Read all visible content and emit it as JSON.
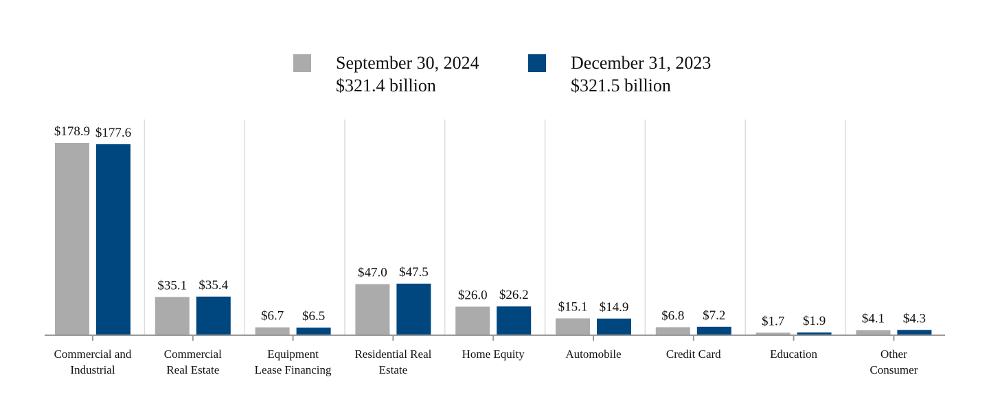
{
  "chart_data": {
    "type": "bar",
    "categories": [
      [
        "Commercial and",
        "Industrial"
      ],
      [
        "Commercial",
        "Real Estate"
      ],
      [
        "Equipment",
        "Lease Financing"
      ],
      [
        "Residential Real",
        "Estate"
      ],
      [
        "Home Equity"
      ],
      [
        "Automobile"
      ],
      [
        "Credit Card"
      ],
      [
        "Education"
      ],
      [
        "Other",
        "Consumer"
      ]
    ],
    "series": [
      {
        "name": "September 30, 2024",
        "total_label": "$321.4 billion",
        "color": "#ababab",
        "values": [
          178.9,
          35.1,
          6.7,
          47.0,
          26.0,
          15.1,
          6.8,
          1.7,
          4.1
        ],
        "labels": [
          "$178.9",
          "$35.1",
          "$6.7",
          "$47.0",
          "$26.0",
          "$15.1",
          "$6.8",
          "$1.7",
          "$4.1"
        ]
      },
      {
        "name": "December 31, 2023",
        "total_label": "$321.5 billion",
        "color": "#00467f",
        "values": [
          177.6,
          35.4,
          6.5,
          47.5,
          26.2,
          14.9,
          7.2,
          1.9,
          4.3
        ],
        "labels": [
          "$177.6",
          "$35.4",
          "$6.5",
          "$47.5",
          "$26.2",
          "$14.9",
          "$7.2",
          "$1.9",
          "$4.3"
        ]
      }
    ],
    "title": "",
    "xlabel": "",
    "ylabel": "",
    "ylim": [
      0,
      178.9
    ],
    "grid": "vertical lines between categories",
    "legend_position": "top-center"
  }
}
